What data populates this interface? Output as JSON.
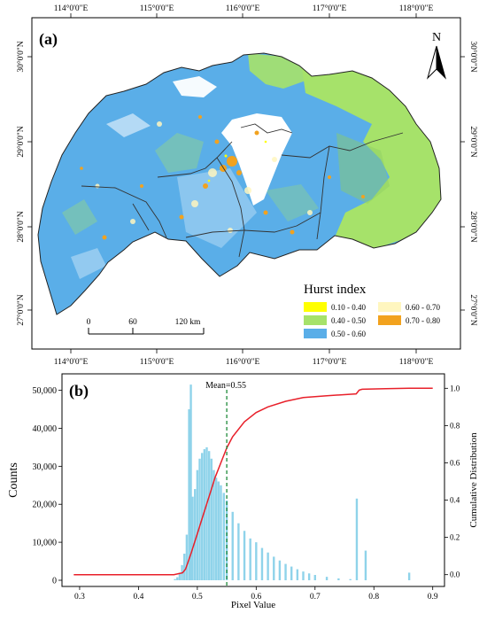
{
  "panel_a": {
    "label": "(a)",
    "lon_ticks": [
      "114°0'0\"E",
      "115°0'0\"E",
      "116°0'0\"E",
      "117°0'0\"E",
      "118°0'0\"E"
    ],
    "lat_ticks": [
      "30°0'0\"N",
      "29°0'0\"N",
      "28°0'0\"N",
      "27°0'0\"N"
    ],
    "north_label": "N",
    "scale_bar": {
      "labels": [
        "0",
        "60",
        "120 km"
      ]
    },
    "legend": {
      "title": "Hurst index",
      "items": [
        {
          "label": "0.10 - 0.40",
          "color": "#ffff00"
        },
        {
          "label": "0.60 - 0.70",
          "color": "#fff6bf"
        },
        {
          "label": "0.40 - 0.50",
          "color": "#a6e26a"
        },
        {
          "label": "0.70 - 0.80",
          "color": "#f2a21e"
        },
        {
          "label": "0.50 - 0.60",
          "color": "#5aaee8"
        }
      ]
    }
  },
  "panel_b": {
    "label": "(b)",
    "mean_label": "Mean=0.55",
    "chart_data": {
      "type": "bar",
      "xlabel": "Pixel Value",
      "ylabel": "Counts",
      "y2label": "Cumulative Distribution",
      "xlim": [
        0.27,
        0.92
      ],
      "ylim": [
        0,
        52000
      ],
      "y2lim": [
        -0.03,
        1.03
      ],
      "x_ticks": [
        "0.3",
        "0.4",
        "0.5",
        "0.6",
        "0.7",
        "0.8",
        "0.9"
      ],
      "y_ticks": [
        "0",
        "10,000",
        "20,000",
        "30,000",
        "40,000",
        "50,000"
      ],
      "y2_ticks": [
        "0.0",
        "0.2",
        "0.4",
        "0.6",
        "0.8",
        "1.0"
      ],
      "mean": 0.55,
      "colors": {
        "bars": "#8fd3ea",
        "cdf": "#e8202a",
        "mean": "#1f8a3a"
      },
      "histogram": {
        "x": [
          0.462,
          0.466,
          0.47,
          0.474,
          0.478,
          0.482,
          0.486,
          0.489,
          0.492,
          0.496,
          0.5,
          0.504,
          0.508,
          0.512,
          0.516,
          0.52,
          0.524,
          0.528,
          0.532,
          0.536,
          0.54,
          0.545,
          0.55,
          0.56,
          0.57,
          0.58,
          0.59,
          0.6,
          0.61,
          0.62,
          0.63,
          0.64,
          0.65,
          0.66,
          0.67,
          0.68,
          0.69,
          0.7,
          0.72,
          0.74,
          0.76,
          0.771,
          0.786,
          0.86
        ],
        "counts": [
          300,
          800,
          2000,
          4000,
          7000,
          12000,
          45000,
          51500,
          22000,
          24000,
          29000,
          32000,
          33500,
          34500,
          35000,
          34000,
          32000,
          29000,
          27000,
          26000,
          25000,
          23000,
          21000,
          18000,
          15000,
          13000,
          11000,
          10000,
          8500,
          7300,
          6200,
          5200,
          4300,
          3600,
          2900,
          2300,
          1800,
          1400,
          900,
          500,
          300,
          21500,
          7800,
          2000
        ]
      },
      "cdf": {
        "x": [
          0.29,
          0.46,
          0.475,
          0.48,
          0.49,
          0.5,
          0.51,
          0.52,
          0.53,
          0.54,
          0.55,
          0.56,
          0.58,
          0.6,
          0.62,
          0.65,
          0.68,
          0.72,
          0.77,
          0.775,
          0.78,
          0.82,
          0.86,
          0.9
        ],
        "y": [
          0.0,
          0.0,
          0.01,
          0.03,
          0.12,
          0.22,
          0.32,
          0.42,
          0.52,
          0.6,
          0.68,
          0.74,
          0.82,
          0.87,
          0.9,
          0.93,
          0.95,
          0.96,
          0.97,
          0.99,
          0.995,
          0.998,
          1.0,
          1.0
        ]
      }
    }
  }
}
